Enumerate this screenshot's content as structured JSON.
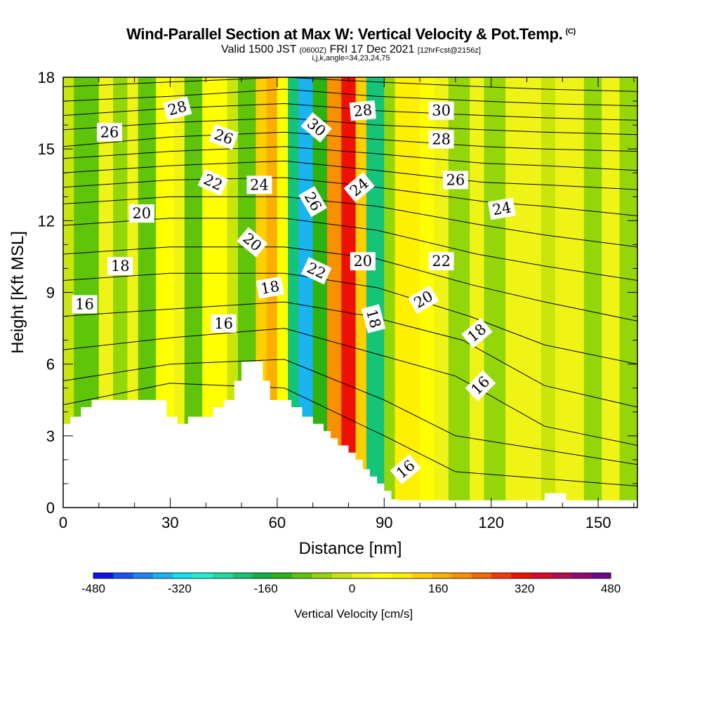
{
  "header": {
    "title": "Wind-Parallel Section at Max W: Vertical Velocity & Pot.Temp.",
    "title_tag": "(C)",
    "valid_prefix": "Valid 1500 JST",
    "valid_utc": "(0600Z)",
    "valid_date": "FRI 17 Dec 2021",
    "forecast": "[12hrFcst@2156z]",
    "indices": "i,j,k,angle=34,23,24,75"
  },
  "chart_data": {
    "type": "heatmap",
    "xlabel": "Distance [nm]",
    "ylabel": "Height [Kft MSL]",
    "xlim": [
      0,
      161
    ],
    "ylim": [
      0,
      18
    ],
    "x_ticks": [
      "0",
      "30",
      "60",
      "90",
      "120",
      "150"
    ],
    "y_ticks": [
      "0",
      "3",
      "6",
      "9",
      "12",
      "15",
      "18"
    ],
    "grid": false,
    "colorbar": {
      "label": "Vertical Velocity [cm/s]",
      "range": [
        -480,
        480
      ],
      "tick_labels": [
        "-480",
        "-320",
        "-160",
        "0",
        "160",
        "320",
        "480"
      ],
      "colors": [
        "#1010ee",
        "#1a55f0",
        "#1d86f0",
        "#1ab4ee",
        "#10e2ee",
        "#22f0cc",
        "#1fdca0",
        "#16c478",
        "#12b044",
        "#2eb212",
        "#5fc40a",
        "#94d60a",
        "#c8e60c",
        "#f0f416",
        "#ffff00",
        "#fef000",
        "#fcd000",
        "#fab000",
        "#f89000",
        "#f46800",
        "#f03a00",
        "#ee1000",
        "#dc0a28",
        "#b80c50",
        "#920a70",
        "#6a0a88"
      ]
    },
    "terrain_kft": [
      [
        0,
        3.5
      ],
      [
        2,
        3.5
      ],
      [
        2,
        3.8
      ],
      [
        5,
        3.8
      ],
      [
        5,
        4.2
      ],
      [
        8,
        4.2
      ],
      [
        8,
        4.5
      ],
      [
        29,
        4.5
      ],
      [
        29,
        3.8
      ],
      [
        32,
        3.8
      ],
      [
        32,
        3.5
      ],
      [
        35,
        3.5
      ],
      [
        35,
        3.8
      ],
      [
        42,
        3.8
      ],
      [
        42,
        4.2
      ],
      [
        45,
        4.2
      ],
      [
        45,
        4.5
      ],
      [
        48,
        4.5
      ],
      [
        48,
        5.3
      ],
      [
        50,
        5.3
      ],
      [
        50,
        6.1
      ],
      [
        56,
        6.1
      ],
      [
        56,
        5.3
      ],
      [
        58,
        5.3
      ],
      [
        58,
        4.5
      ],
      [
        64,
        4.5
      ],
      [
        64,
        4.2
      ],
      [
        67,
        4.2
      ],
      [
        67,
        3.8
      ],
      [
        70,
        3.8
      ],
      [
        70,
        3.5
      ],
      [
        73,
        3.5
      ],
      [
        73,
        3.2
      ],
      [
        75,
        3.2
      ],
      [
        75,
        2.9
      ],
      [
        77,
        2.9
      ],
      [
        77,
        2.6
      ],
      [
        80,
        2.6
      ],
      [
        80,
        2.3
      ],
      [
        82,
        2.3
      ],
      [
        82,
        2.0
      ],
      [
        84,
        2.0
      ],
      [
        84,
        1.6
      ],
      [
        86,
        1.6
      ],
      [
        86,
        1.3
      ],
      [
        88,
        1.3
      ],
      [
        88,
        1.0
      ],
      [
        90,
        1.0
      ],
      [
        90,
        0.7
      ],
      [
        92,
        0.7
      ],
      [
        92,
        0.35
      ],
      [
        94,
        0.35
      ],
      [
        94,
        0.3
      ],
      [
        135,
        0.3
      ],
      [
        135,
        0.6
      ],
      [
        141,
        0.6
      ],
      [
        141,
        0.3
      ],
      [
        161,
        0.3
      ],
      [
        161,
        0
      ]
    ],
    "w_cells": [
      {
        "x": [
          0,
          3
        ],
        "w": -20
      },
      {
        "x": [
          3,
          10
        ],
        "w": -80
      },
      {
        "x": [
          10,
          14
        ],
        "w": 20
      },
      {
        "x": [
          14,
          18
        ],
        "w": -60
      },
      {
        "x": [
          18,
          21
        ],
        "w": 10
      },
      {
        "x": [
          21,
          26
        ],
        "w": -90
      },
      {
        "x": [
          26,
          31
        ],
        "w": 70
      },
      {
        "x": [
          31,
          34
        ],
        "w": 30
      },
      {
        "x": [
          34,
          39
        ],
        "w": -110
      },
      {
        "x": [
          39,
          46
        ],
        "w": 60
      },
      {
        "x": [
          46,
          49
        ],
        "w": -20
      },
      {
        "x": [
          49,
          54
        ],
        "w": -110
      },
      {
        "x": [
          54,
          57
        ],
        "w": 120
      },
      {
        "x": [
          57,
          60
        ],
        "w": 180
      },
      {
        "x": [
          60,
          63
        ],
        "w": 40
      },
      {
        "x": [
          63,
          66
        ],
        "w": -200
      },
      {
        "x": [
          66,
          70
        ],
        "w": -340
      },
      {
        "x": [
          70,
          74
        ],
        "w": -120
      },
      {
        "x": [
          74,
          78
        ],
        "w": 200
      },
      {
        "x": [
          78,
          82
        ],
        "w": 300
      },
      {
        "x": [
          82,
          85
        ],
        "w": 120
      },
      {
        "x": [
          85,
          90
        ],
        "w": -190
      },
      {
        "x": [
          90,
          93
        ],
        "w": -60
      },
      {
        "x": [
          93,
          100
        ],
        "w": 110
      },
      {
        "x": [
          100,
          104
        ],
        "w": 60
      },
      {
        "x": [
          104,
          108
        ],
        "w": 10
      },
      {
        "x": [
          108,
          114
        ],
        "w": -60
      },
      {
        "x": [
          114,
          118
        ],
        "w": 20
      },
      {
        "x": [
          118,
          124
        ],
        "w": -40
      },
      {
        "x": [
          124,
          134
        ],
        "w": 30
      },
      {
        "x": [
          134,
          138
        ],
        "w": -30
      },
      {
        "x": [
          138,
          146
        ],
        "w": 10
      },
      {
        "x": [
          146,
          151
        ],
        "w": -50
      },
      {
        "x": [
          151,
          156
        ],
        "w": 15
      },
      {
        "x": [
          156,
          161
        ],
        "w": -40
      }
    ],
    "theta_contours": [
      {
        "c": 14,
        "pts": [
          [
            0,
            4.3
          ],
          [
            30,
            5.2
          ],
          [
            62,
            5.0
          ],
          [
            90,
            3.0
          ],
          [
            110,
            1.5
          ],
          [
            161,
            0.9
          ]
        ]
      },
      {
        "c": 15,
        "pts": [
          [
            0,
            5.3
          ],
          [
            30,
            6.0
          ],
          [
            62,
            6.2
          ],
          [
            90,
            4.5
          ],
          [
            110,
            3.0
          ],
          [
            161,
            1.8
          ]
        ]
      },
      {
        "c": 16,
        "pts": [
          [
            0,
            6.6
          ],
          [
            30,
            7.1
          ],
          [
            62,
            7.5
          ],
          [
            86,
            6.5
          ],
          [
            110,
            5.5
          ],
          [
            135,
            3.4
          ],
          [
            161,
            2.6
          ]
        ]
      },
      {
        "c": 17,
        "pts": [
          [
            0,
            8.0
          ],
          [
            30,
            8.3
          ],
          [
            62,
            8.6
          ],
          [
            86,
            8.0
          ],
          [
            112,
            7.0
          ],
          [
            135,
            5.1
          ],
          [
            161,
            4.2
          ]
        ]
      },
      {
        "c": 18,
        "pts": [
          [
            0,
            9.5
          ],
          [
            30,
            9.8
          ],
          [
            62,
            9.8
          ],
          [
            88,
            9.2
          ],
          [
            114,
            8.0
          ],
          [
            135,
            6.8
          ],
          [
            161,
            6.0
          ]
        ]
      },
      {
        "c": 19,
        "pts": [
          [
            0,
            10.6
          ],
          [
            30,
            10.9
          ],
          [
            62,
            10.9
          ],
          [
            88,
            10.4
          ],
          [
            115,
            9.3
          ],
          [
            135,
            8.6
          ],
          [
            161,
            7.8
          ]
        ]
      },
      {
        "c": 20,
        "pts": [
          [
            0,
            11.8
          ],
          [
            30,
            12.1
          ],
          [
            62,
            12.1
          ],
          [
            88,
            11.6
          ],
          [
            116,
            10.6
          ],
          [
            135,
            10.1
          ],
          [
            161,
            9.5
          ]
        ]
      },
      {
        "c": 21,
        "pts": [
          [
            0,
            12.7
          ],
          [
            30,
            13.0
          ],
          [
            62,
            13.0
          ],
          [
            88,
            12.6
          ],
          [
            118,
            11.8
          ],
          [
            135,
            11.4
          ],
          [
            161,
            10.9
          ]
        ]
      },
      {
        "c": 22,
        "pts": [
          [
            0,
            13.4
          ],
          [
            30,
            13.7
          ],
          [
            62,
            13.8
          ],
          [
            88,
            13.4
          ],
          [
            118,
            12.8
          ],
          [
            135,
            12.6
          ],
          [
            161,
            12.2
          ]
        ]
      },
      {
        "c": 23,
        "pts": [
          [
            0,
            14.0
          ],
          [
            30,
            14.3
          ],
          [
            62,
            14.5
          ],
          [
            88,
            14.1
          ],
          [
            118,
            13.6
          ],
          [
            135,
            13.5
          ],
          [
            161,
            13.3
          ]
        ]
      },
      {
        "c": 24,
        "pts": [
          [
            0,
            14.6
          ],
          [
            30,
            14.9
          ],
          [
            62,
            15.1
          ],
          [
            88,
            14.8
          ],
          [
            118,
            14.4
          ],
          [
            135,
            14.3
          ],
          [
            161,
            14.1
          ]
        ]
      },
      {
        "c": 25,
        "pts": [
          [
            0,
            15.1
          ],
          [
            30,
            15.5
          ],
          [
            62,
            15.7
          ],
          [
            88,
            15.4
          ],
          [
            118,
            15.1
          ],
          [
            135,
            15.0
          ],
          [
            161,
            14.9
          ]
        ]
      },
      {
        "c": 26,
        "pts": [
          [
            0,
            15.8
          ],
          [
            30,
            16.1
          ],
          [
            62,
            16.3
          ],
          [
            88,
            16.0
          ],
          [
            118,
            15.8
          ],
          [
            135,
            15.7
          ],
          [
            161,
            15.6
          ]
        ]
      },
      {
        "c": 27,
        "pts": [
          [
            0,
            16.4
          ],
          [
            30,
            16.7
          ],
          [
            62,
            16.9
          ],
          [
            88,
            16.6
          ],
          [
            118,
            16.4
          ],
          [
            135,
            16.3
          ],
          [
            161,
            16.2
          ]
        ]
      },
      {
        "c": 28,
        "pts": [
          [
            0,
            17.0
          ],
          [
            30,
            17.2
          ],
          [
            62,
            17.5
          ],
          [
            88,
            17.2
          ],
          [
            118,
            17.0
          ],
          [
            135,
            16.9
          ],
          [
            161,
            16.8
          ]
        ]
      },
      {
        "c": 29,
        "pts": [
          [
            0,
            17.6
          ],
          [
            30,
            17.8
          ],
          [
            62,
            18.0
          ],
          [
            88,
            17.8
          ],
          [
            118,
            17.6
          ],
          [
            135,
            17.5
          ],
          [
            161,
            17.4
          ]
        ]
      }
    ],
    "contour_labels": [
      {
        "text": "28",
        "x": 32,
        "y": 16.7,
        "rot": -15
      },
      {
        "text": "26",
        "x": 13,
        "y": 15.7,
        "rot": 0
      },
      {
        "text": "26",
        "x": 45,
        "y": 15.5,
        "rot": 20
      },
      {
        "text": "30",
        "x": 71,
        "y": 15.9,
        "rot": 40
      },
      {
        "text": "28",
        "x": 84,
        "y": 16.6,
        "rot": -5
      },
      {
        "text": "30",
        "x": 106,
        "y": 16.6,
        "rot": 0
      },
      {
        "text": "28",
        "x": 106,
        "y": 15.4,
        "rot": 0
      },
      {
        "text": "22",
        "x": 42,
        "y": 13.6,
        "rot": 25
      },
      {
        "text": "24",
        "x": 55,
        "y": 13.5,
        "rot": 0
      },
      {
        "text": "26",
        "x": 70,
        "y": 12.8,
        "rot": 60
      },
      {
        "text": "24",
        "x": 83,
        "y": 13.4,
        "rot": -40
      },
      {
        "text": "26",
        "x": 110,
        "y": 13.7,
        "rot": 0
      },
      {
        "text": "24",
        "x": 123,
        "y": 12.5,
        "rot": -10
      },
      {
        "text": "20",
        "x": 22,
        "y": 12.3,
        "rot": 0
      },
      {
        "text": "20",
        "x": 53,
        "y": 11.1,
        "rot": 40
      },
      {
        "text": "22",
        "x": 71,
        "y": 9.9,
        "rot": 25
      },
      {
        "text": "20",
        "x": 84,
        "y": 10.3,
        "rot": 0
      },
      {
        "text": "22",
        "x": 106,
        "y": 10.3,
        "rot": 0
      },
      {
        "text": "18",
        "x": 16,
        "y": 10.1,
        "rot": 0
      },
      {
        "text": "18",
        "x": 58,
        "y": 9.2,
        "rot": -10
      },
      {
        "text": "18",
        "x": 87,
        "y": 7.9,
        "rot": 75
      },
      {
        "text": "20",
        "x": 101,
        "y": 8.7,
        "rot": -30
      },
      {
        "text": "16",
        "x": 6,
        "y": 8.5,
        "rot": 0
      },
      {
        "text": "16",
        "x": 45,
        "y": 7.7,
        "rot": 0
      },
      {
        "text": "18",
        "x": 116,
        "y": 7.3,
        "rot": -40
      },
      {
        "text": "16",
        "x": 117,
        "y": 5.1,
        "rot": -45
      },
      {
        "text": "16",
        "x": 96,
        "y": 1.6,
        "rot": -40
      }
    ]
  }
}
